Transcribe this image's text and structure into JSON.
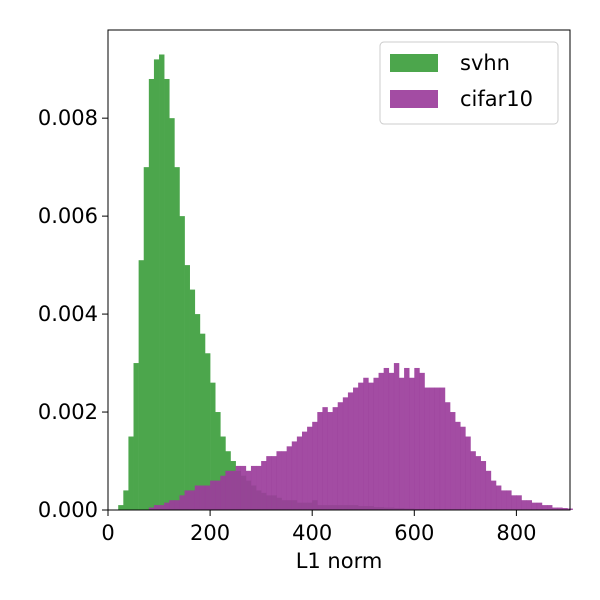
{
  "chart_data": {
    "type": "bar",
    "subtype": "overlaid-histogram",
    "xlabel": "L1 norm",
    "ylabel": "",
    "xlim": [
      0,
      905
    ],
    "ylim": [
      0,
      0.0098
    ],
    "xticks": [
      0,
      200,
      400,
      600,
      800
    ],
    "xtick_labels": [
      "0",
      "200",
      "400",
      "600",
      "800"
    ],
    "yticks": [
      0,
      0.002,
      0.004,
      0.006,
      0.008
    ],
    "ytick_labels": [
      "0.000",
      "0.002",
      "0.004",
      "0.006",
      "0.008"
    ],
    "grid": false,
    "legend_position": "top-right",
    "bin_width": 10,
    "series": [
      {
        "name": "svhn",
        "color": "#4ca64c",
        "opacity": 1,
        "bin_start": 20,
        "values": [
          0.0001,
          0.0004,
          0.0015,
          0.003,
          0.0051,
          0.007,
          0.0088,
          0.0092,
          0.0093,
          0.0088,
          0.008,
          0.007,
          0.006,
          0.005,
          0.0045,
          0.004,
          0.0036,
          0.0032,
          0.0026,
          0.002,
          0.0015,
          0.0012,
          0.001,
          0.0008,
          0.0007,
          0.0006,
          0.0005,
          0.0004,
          0.00035,
          0.0003,
          0.0003,
          0.00025,
          0.0002,
          0.0002,
          0.0002,
          0.00015,
          0.00015,
          0.00015,
          0.0002,
          0.0001,
          0.0001,
          0.0001,
          0.0001,
          0.0001,
          0.0001,
          0.0001,
          0.0001,
          8e-05,
          8e-05,
          8e-05,
          6e-05,
          6e-05,
          5e-05,
          5e-05,
          4e-05,
          4e-05,
          3e-05,
          3e-05,
          2e-05,
          2e-05,
          2e-05,
          1e-05,
          1e-05,
          1e-05,
          1e-05,
          1e-05,
          1e-05,
          1e-05,
          1e-05,
          1e-05
        ]
      },
      {
        "name": "cifar10",
        "color": "#9b3d9b",
        "opacity": 0.92,
        "bin_start": 80,
        "values": [
          5e-05,
          0.0001,
          0.0001,
          0.00015,
          0.0002,
          0.0002,
          0.0003,
          0.0004,
          0.0004,
          0.0005,
          0.0005,
          0.0005,
          0.0006,
          0.0006,
          0.0007,
          0.0008,
          0.0008,
          0.0009,
          0.0009,
          0.0008,
          0.0009,
          0.0009,
          0.001,
          0.0011,
          0.0011,
          0.0012,
          0.0012,
          0.0013,
          0.0014,
          0.0015,
          0.0016,
          0.0017,
          0.0018,
          0.002,
          0.0021,
          0.002,
          0.0021,
          0.0022,
          0.0023,
          0.0024,
          0.0025,
          0.0026,
          0.0027,
          0.0026,
          0.0027,
          0.0028,
          0.0029,
          0.0028,
          0.003,
          0.0027,
          0.0029,
          0.0027,
          0.0029,
          0.0028,
          0.0025,
          0.0025,
          0.0025,
          0.0025,
          0.0022,
          0.002,
          0.0018,
          0.0017,
          0.0015,
          0.0012,
          0.0011,
          0.001,
          0.0008,
          0.0006,
          0.0005,
          0.0004,
          0.0004,
          0.0003,
          0.0003,
          0.0002,
          0.0002,
          0.00015,
          0.00015,
          0.0001,
          0.0001,
          5e-05,
          5e-05,
          4e-05,
          3e-05
        ]
      }
    ]
  }
}
